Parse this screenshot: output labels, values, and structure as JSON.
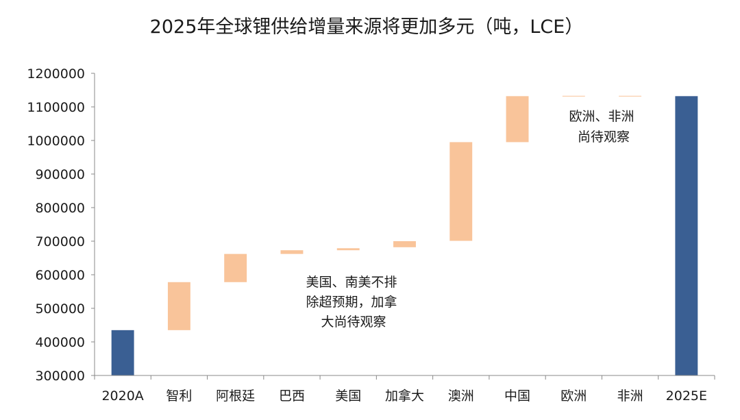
{
  "chart_data": {
    "type": "bar",
    "subtype": "waterfall",
    "title": "2025年全球锂供给增量来源将更加多元（吨，LCE）",
    "xlabel": "",
    "ylabel": "",
    "ylim": [
      300000,
      1200000
    ],
    "yticks": [
      "300000",
      "400000",
      "500000",
      "600000",
      "700000",
      "800000",
      "900000",
      "1000000",
      "1100000",
      "1200000"
    ],
    "grid": false,
    "categories": [
      "2020A",
      "智利",
      "阿根廷",
      "巴西",
      "美国",
      "加拿大",
      "澳洲",
      "中国",
      "欧洲",
      "非洲",
      "2025E"
    ],
    "bars": [
      {
        "category": "2020A",
        "kind": "total",
        "start": 300000,
        "end": 435000
      },
      {
        "category": "智利",
        "kind": "increment",
        "start": 435000,
        "end": 578000
      },
      {
        "category": "阿根廷",
        "kind": "increment",
        "start": 578000,
        "end": 662000
      },
      {
        "category": "巴西",
        "kind": "increment",
        "start": 662000,
        "end": 673000
      },
      {
        "category": "美国",
        "kind": "increment",
        "start": 673000,
        "end": 679000
      },
      {
        "category": "加拿大",
        "kind": "increment",
        "start": 682000,
        "end": 700000
      },
      {
        "category": "澳洲",
        "kind": "increment",
        "start": 701000,
        "end": 995000
      },
      {
        "category": "中国",
        "kind": "increment",
        "start": 995000,
        "end": 1132000
      },
      {
        "category": "欧洲",
        "kind": "increment",
        "start": 1132000,
        "end": 1133000
      },
      {
        "category": "非洲",
        "kind": "increment",
        "start": 1132000,
        "end": 1133000
      },
      {
        "category": "2025E",
        "kind": "total",
        "start": 300000,
        "end": 1132000
      }
    ],
    "colors": {
      "total": "#3a5f93",
      "increment": "#f9c49a"
    },
    "annotations": [
      {
        "id": "americas",
        "lines": [
          "美国、南美不排",
          "除超预期，加拿",
          "大尚待观察"
        ]
      },
      {
        "id": "europe-africa",
        "lines": [
          "欧洲、非洲",
          "尚待观察"
        ]
      }
    ]
  }
}
